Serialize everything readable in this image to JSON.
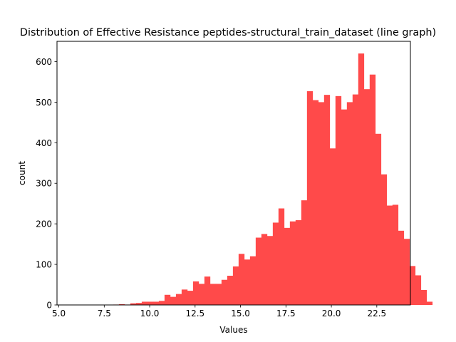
{
  "chart_data": {
    "type": "bar",
    "title": "Distribution of Effective Resistance peptides-structural_train_dataset (line graph)",
    "xlabel": "Values",
    "ylabel": "count",
    "xlim": [
      4.9,
      24.35
    ],
    "ylim": [
      0,
      650
    ],
    "xticks": [
      5.0,
      7.5,
      10.0,
      12.5,
      15.0,
      17.5,
      20.0,
      22.5
    ],
    "xtick_labels": [
      "5.0",
      "7.5",
      "10.0",
      "12.5",
      "15.0",
      "17.5",
      "20.0",
      "22.5"
    ],
    "yticks": [
      0,
      100,
      200,
      300,
      400,
      500,
      600
    ],
    "ytick_labels": [
      "0",
      "100",
      "200",
      "300",
      "400",
      "500",
      "600"
    ],
    "bin_start": 5.8,
    "bin_width": 0.3136,
    "values": [
      0,
      0,
      0,
      0,
      0,
      0,
      0,
      1,
      2,
      1,
      4,
      5,
      8,
      8,
      8,
      10,
      25,
      20,
      27,
      38,
      35,
      58,
      52,
      70,
      52,
      52,
      62,
      72,
      95,
      126,
      112,
      120,
      166,
      175,
      170,
      203,
      238,
      190,
      206,
      209,
      258,
      527,
      505,
      500,
      518,
      386,
      515,
      482,
      500,
      519,
      620,
      532,
      568,
      422,
      322,
      245,
      247,
      183,
      163,
      96,
      73,
      37,
      8
    ],
    "color": "#ff4a4a",
    "grid": false
  }
}
